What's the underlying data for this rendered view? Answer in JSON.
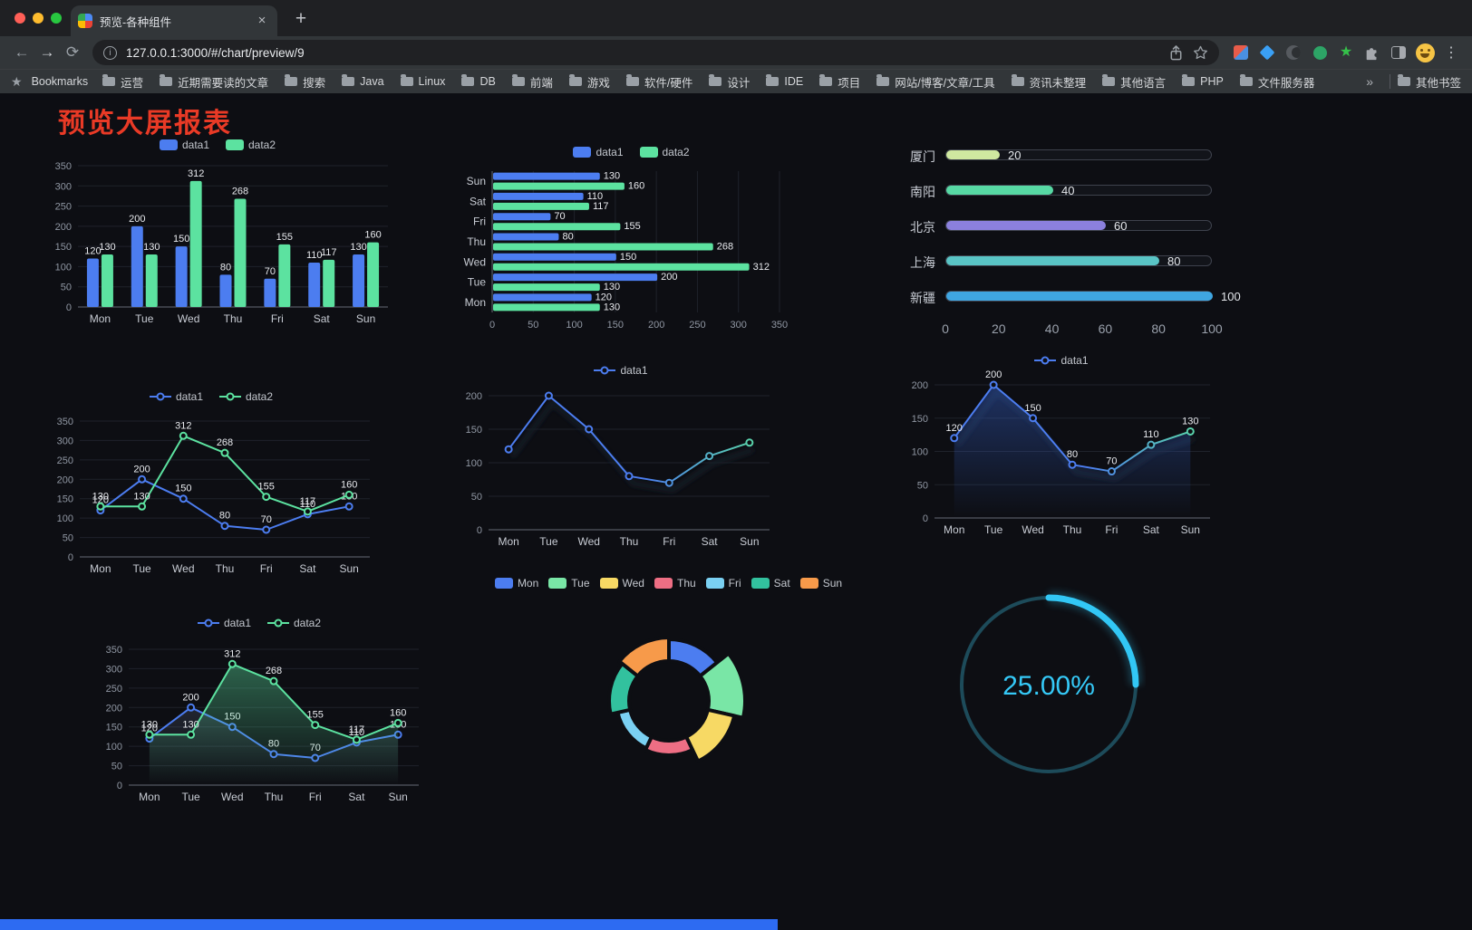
{
  "browser": {
    "tab_title": "预览-各种组件",
    "url": "127.0.0.1:3000/#/chart/preview/9",
    "bookmarks_label": "Bookmarks",
    "bookmarks": [
      "运营",
      "近期需要读的文章",
      "搜索",
      "Java",
      "Linux",
      "DB",
      "前端",
      "游戏",
      "软件/硬件",
      "设计",
      "IDE",
      "项目",
      "网站/博客/文章/工具",
      "资讯未整理",
      "其他语言",
      "PHP",
      "文件服务器"
    ],
    "other_bookmarks": "其他书签",
    "traffic_lights": {
      "close": "#ff5f57",
      "minimize": "#febc2e",
      "zoom": "#28c840"
    }
  },
  "icons": {
    "back": "←",
    "forward": "→",
    "reload": "⟳",
    "info": "i",
    "close_tab": "×",
    "new_tab": "+",
    "menu": "⋮",
    "overflow": "»",
    "bookmarks_star": "★",
    "ext_star": "★"
  },
  "page": {
    "title": "预览大屏报表",
    "title_color": "#e93a26",
    "footer_color": "#2d6bf2",
    "background": "#0d0e13"
  },
  "chart_data": [
    {
      "id": "grouped-bar",
      "type": "bar",
      "categories": [
        "Mon",
        "Tue",
        "Wed",
        "Thu",
        "Fri",
        "Sat",
        "Sun"
      ],
      "series": [
        {
          "name": "data1",
          "color": "#4c7df0",
          "values": [
            120,
            200,
            150,
            80,
            70,
            110,
            130
          ]
        },
        {
          "name": "data2",
          "color": "#5ce2a0",
          "values": [
            130,
            130,
            312,
            268,
            155,
            117,
            160
          ]
        }
      ],
      "ylim": [
        0,
        350
      ],
      "yticks": [
        0,
        50,
        100,
        150,
        200,
        250,
        300,
        350
      ],
      "legend_position": "top"
    },
    {
      "id": "h-bar",
      "type": "bar-horizontal",
      "categories": [
        "Mon",
        "Tue",
        "Wed",
        "Thu",
        "Fri",
        "Sat",
        "Sun"
      ],
      "category_display_order": "Sun at top, Mon at bottom",
      "series": [
        {
          "name": "data1",
          "color": "#4c7df0",
          "values": [
            120,
            200,
            150,
            80,
            70,
            110,
            130
          ]
        },
        {
          "name": "data2",
          "color": "#5ce2a0",
          "values": [
            130,
            130,
            312,
            268,
            155,
            117,
            160
          ]
        }
      ],
      "xlim": [
        0,
        350
      ],
      "xticks": [
        0,
        50,
        100,
        150,
        200,
        250,
        300,
        350
      ],
      "legend_position": "top"
    },
    {
      "id": "city-progress",
      "type": "bar",
      "subtype": "progress-pills",
      "max": 100,
      "xticks": [
        0,
        20,
        40,
        60,
        80,
        100
      ],
      "rows": [
        {
          "label": "厦门",
          "value": 20,
          "color": "#cfe8a0"
        },
        {
          "label": "南阳",
          "value": 40,
          "color": "#57d9a4"
        },
        {
          "label": "北京",
          "value": 60,
          "color": "#8b80dd"
        },
        {
          "label": "上海",
          "value": 80,
          "color": "#59c4c5"
        },
        {
          "label": "新疆",
          "value": 100,
          "color": "#3fa6e2"
        }
      ]
    },
    {
      "id": "line-two",
      "type": "line",
      "categories": [
        "Mon",
        "Tue",
        "Wed",
        "Thu",
        "Fri",
        "Sat",
        "Sun"
      ],
      "series": [
        {
          "name": "data1",
          "color": "#4c7df0",
          "values": [
            120,
            200,
            150,
            80,
            70,
            110,
            130
          ],
          "labels": true
        },
        {
          "name": "data2",
          "color": "#5ce2a0",
          "values": [
            130,
            130,
            312,
            268,
            155,
            117,
            160
          ],
          "labels": true
        }
      ],
      "ylim": [
        0,
        350
      ],
      "yticks": [
        0,
        50,
        100,
        150,
        200,
        250,
        300,
        350
      ],
      "legend_position": "top"
    },
    {
      "id": "line-gradient",
      "type": "line",
      "categories": [
        "Mon",
        "Tue",
        "Wed",
        "Thu",
        "Fri",
        "Sat",
        "Sun"
      ],
      "series": [
        {
          "name": "data1",
          "color_gradient": [
            "#4c7df0",
            "#5ce2a0"
          ],
          "values": [
            120,
            200,
            150,
            80,
            70,
            110,
            130
          ],
          "labels": false,
          "shadow": true
        }
      ],
      "ylim": [
        0,
        200
      ],
      "yticks": [
        0,
        50,
        100,
        150,
        200
      ],
      "legend_position": "top"
    },
    {
      "id": "line-area-single",
      "type": "area",
      "categories": [
        "Mon",
        "Tue",
        "Wed",
        "Thu",
        "Fri",
        "Sat",
        "Sun"
      ],
      "series": [
        {
          "name": "data1",
          "color_gradient": [
            "#4c7df0",
            "#5ce2a0"
          ],
          "area": "#3c6ee6",
          "area_opacity": 0.38,
          "values": [
            120,
            200,
            150,
            80,
            70,
            110,
            130
          ],
          "labels": true,
          "shadow": true
        }
      ],
      "ylim": [
        0,
        200
      ],
      "yticks": [
        0,
        50,
        100,
        150,
        200
      ],
      "legend_position": "top"
    },
    {
      "id": "line-area-two",
      "type": "area",
      "categories": [
        "Mon",
        "Tue",
        "Wed",
        "Thu",
        "Fri",
        "Sat",
        "Sun"
      ],
      "series": [
        {
          "name": "data1",
          "color": "#4c7df0",
          "area": "#8091b8",
          "area_opacity": 0.18,
          "values": [
            120,
            200,
            150,
            80,
            70,
            110,
            130
          ],
          "labels": true
        },
        {
          "name": "data2",
          "color": "#5ce2a0",
          "area": "#5ce2a0",
          "area_opacity": 0.4,
          "values": [
            130,
            130,
            312,
            268,
            155,
            117,
            160
          ],
          "labels": true
        }
      ],
      "ylim": [
        0,
        350
      ],
      "yticks": [
        0,
        50,
        100,
        150,
        200,
        250,
        300,
        350
      ],
      "legend_position": "top"
    },
    {
      "id": "rose-pie",
      "type": "pie",
      "mode": "rose",
      "inner_radius_ratio": 0.52,
      "slices": [
        {
          "label": "Mon",
          "value": 120,
          "color": "#4c7df0"
        },
        {
          "label": "Tue",
          "value": 200,
          "color": "#79e6a6"
        },
        {
          "label": "Wed",
          "value": 150,
          "color": "#f7d964"
        },
        {
          "label": "Thu",
          "value": 80,
          "color": "#ee6e84"
        },
        {
          "label": "Fri",
          "value": 70,
          "color": "#7ad0f2"
        },
        {
          "label": "Sat",
          "value": 110,
          "color": "#32c19e"
        },
        {
          "label": "Sun",
          "value": 130,
          "color": "#f79a4a"
        }
      ],
      "legend_position": "top"
    },
    {
      "id": "gauge",
      "type": "pie",
      "subtype": "ring-progress",
      "value": 25,
      "display": "25.00%",
      "color": "#32c7f5",
      "track_color": "#1d4b5a"
    }
  ]
}
